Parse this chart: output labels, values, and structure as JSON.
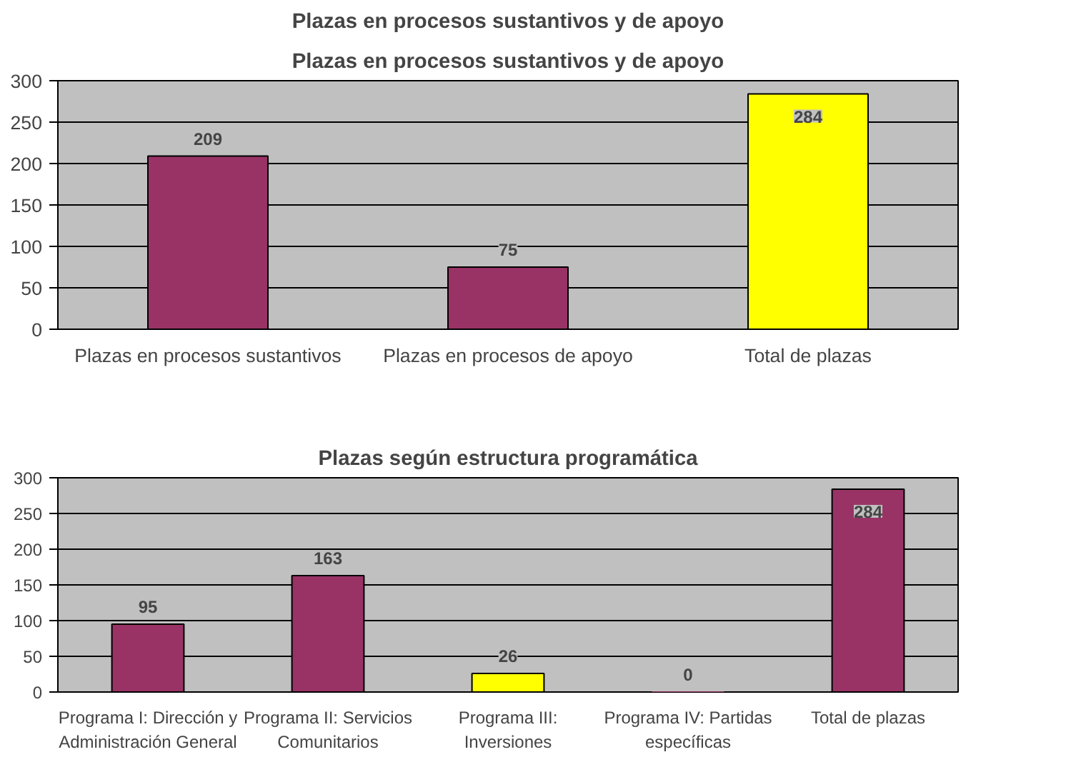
{
  "chart_data": [
    {
      "type": "bar",
      "title": "Plazas en procesos sustantivos y de apoyo",
      "annotations": [
        "Plazas en procesos sustantivos y de apoyo"
      ],
      "categories": [
        "Plazas en procesos sustantivos",
        "Plazas en procesos de apoyo",
        "Total de plazas"
      ],
      "values": [
        209,
        75,
        284
      ],
      "colors": [
        "#993366",
        "#993366",
        "#ffff00"
      ],
      "ylim": [
        0,
        300
      ],
      "yticks": [
        0,
        50,
        100,
        150,
        200,
        250,
        300
      ],
      "grid": "y",
      "data_labels": true
    },
    {
      "type": "bar",
      "title": "Plazas según estructura programática",
      "categories": [
        "Programa I: Dirección y Administración General",
        "Programa II: Servicios Comunitarios",
        "Programa III: Inversiones",
        "Programa IV: Partidas específicas",
        "Total de plazas"
      ],
      "values": [
        95,
        163,
        26,
        0,
        284
      ],
      "colors": [
        "#993366",
        "#993366",
        "#ffff00",
        "#993366",
        "#993366"
      ],
      "ylim": [
        0,
        300
      ],
      "yticks": [
        0,
        50,
        100,
        150,
        200,
        250,
        300
      ],
      "grid": "y",
      "data_labels": true
    }
  ]
}
